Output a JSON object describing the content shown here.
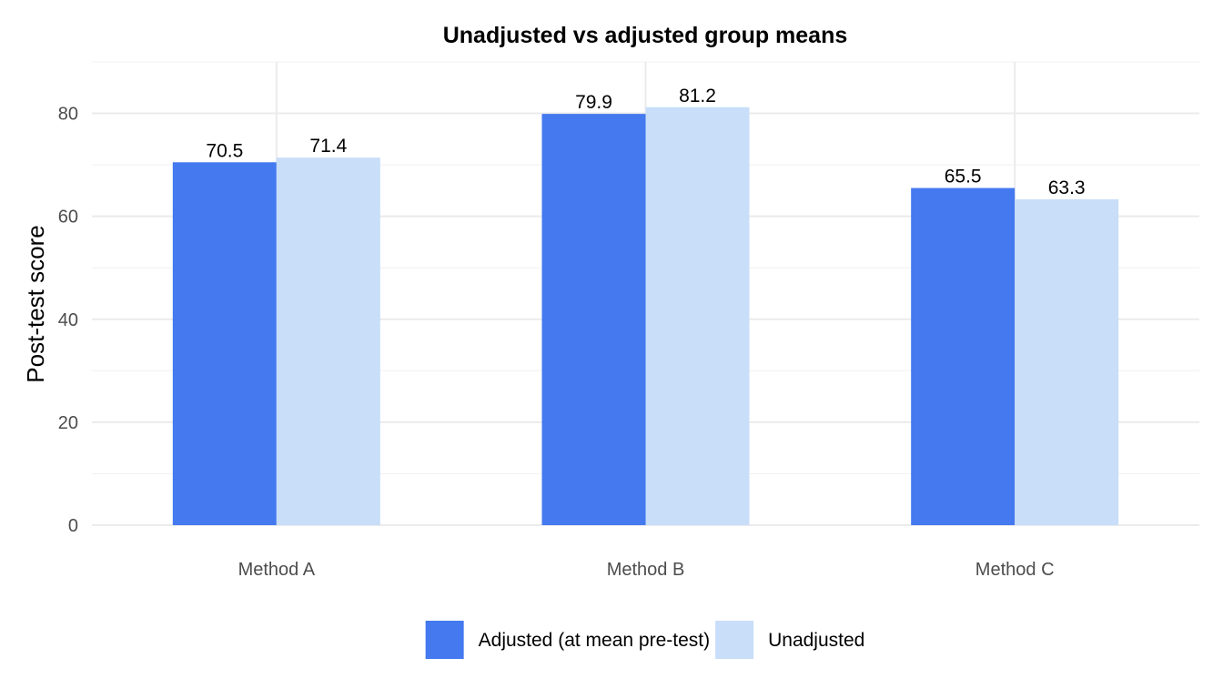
{
  "chart_data": {
    "type": "bar",
    "title": "Unadjusted vs adjusted group means",
    "xlabel": "",
    "ylabel": "Post-test score",
    "categories": [
      "Method A",
      "Method B",
      "Method C"
    ],
    "series": [
      {
        "name": "Adjusted (at mean pre-test)",
        "values": [
          70.5,
          79.9,
          65.5
        ],
        "labels": [
          "70.5",
          "79.9",
          "65.5"
        ],
        "color": "#4479ef"
      },
      {
        "name": "Unadjusted",
        "values": [
          71.4,
          81.2,
          63.3
        ],
        "labels": [
          "71.4",
          "81.2",
          "63.3"
        ],
        "color": "#c8def9"
      }
    ],
    "ylim": [
      0,
      90
    ],
    "yticks": [
      0,
      20,
      40,
      60,
      80
    ],
    "ytick_labels": [
      "0",
      "20",
      "40",
      "60",
      "80"
    ],
    "grid": true,
    "legend_position": "bottom"
  }
}
